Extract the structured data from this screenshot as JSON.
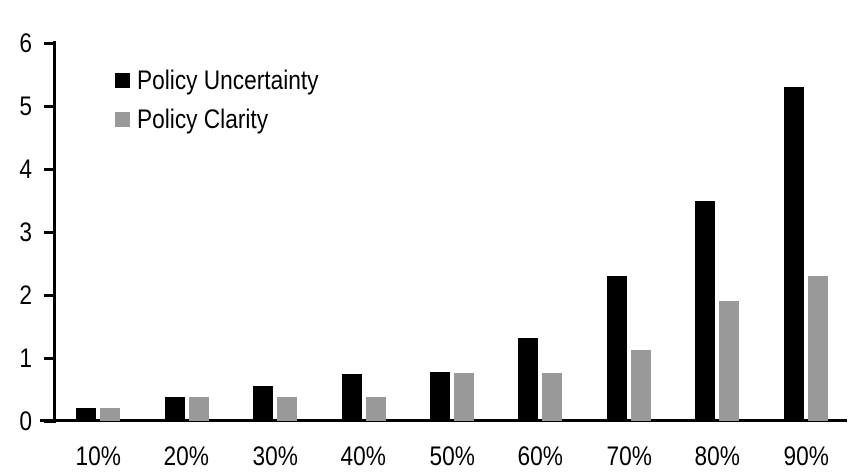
{
  "chart_data": {
    "type": "bar",
    "title": "",
    "xlabel": "",
    "ylabel": "",
    "categories": [
      "10%",
      "20%",
      "30%",
      "40%",
      "50%",
      "60%",
      "70%",
      "80%",
      "90%"
    ],
    "series": [
      {
        "name": "Policy Uncertainty",
        "color": "#000000",
        "values": [
          0.2,
          0.38,
          0.55,
          0.75,
          0.77,
          1.32,
          2.3,
          3.5,
          5.3
        ]
      },
      {
        "name": "Policy Clarity",
        "color": "#999999",
        "values": [
          0.2,
          0.38,
          0.38,
          0.38,
          0.76,
          0.76,
          1.13,
          1.9,
          2.3
        ]
      }
    ],
    "ylim": [
      0,
      6
    ],
    "yticks": [
      0,
      1,
      2,
      3,
      4,
      5,
      6
    ],
    "grid": false,
    "legend_position": "top-left",
    "axis_color": "#000000",
    "background_color": "#ffffff",
    "text_color": "#000000"
  }
}
